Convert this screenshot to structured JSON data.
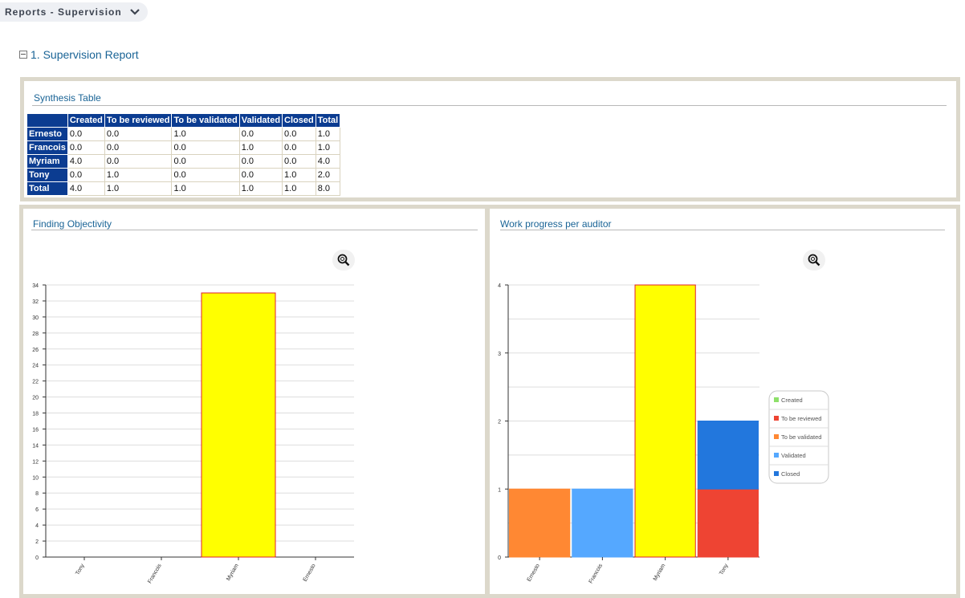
{
  "header": {
    "title": "Reports - Supervision"
  },
  "section": {
    "title": "1. Supervision Report"
  },
  "synthesis": {
    "title": "Synthesis Table",
    "columns": [
      "Created",
      "To be reviewed",
      "To be validated",
      "Validated",
      "Closed",
      "Total"
    ],
    "rows": [
      {
        "label": "Ernesto",
        "values": [
          "0.0",
          "0.0",
          "1.0",
          "0.0",
          "0.0",
          "1.0"
        ]
      },
      {
        "label": "Francois",
        "values": [
          "0.0",
          "0.0",
          "0.0",
          "1.0",
          "0.0",
          "1.0"
        ]
      },
      {
        "label": "Myriam",
        "values": [
          "4.0",
          "0.0",
          "0.0",
          "0.0",
          "0.0",
          "4.0"
        ]
      },
      {
        "label": "Tony",
        "values": [
          "0.0",
          "1.0",
          "0.0",
          "0.0",
          "1.0",
          "2.0"
        ]
      },
      {
        "label": "Total",
        "values": [
          "4.0",
          "1.0",
          "1.0",
          "1.0",
          "1.0",
          "8.0"
        ]
      }
    ]
  },
  "chart_data": [
    {
      "type": "bar",
      "title": "Finding Objectivity",
      "categories": [
        "Tony",
        "Francois",
        "Myriam",
        "Ernesto"
      ],
      "values": [
        0,
        0,
        33,
        0
      ],
      "ylim": [
        0,
        34
      ],
      "yticks": [
        0,
        2,
        4,
        6,
        8,
        10,
        12,
        14,
        16,
        18,
        20,
        22,
        24,
        26,
        28,
        30,
        32,
        34
      ],
      "grid": true,
      "bar_color": "#ffff00",
      "bar_stroke": "#e0202a"
    },
    {
      "type": "bar",
      "stacked": true,
      "title": "Work progress per auditor",
      "categories": [
        "Ernesto",
        "Francois",
        "Myriam",
        "Tony"
      ],
      "series": [
        {
          "name": "Created",
          "color": "#ffff00",
          "stroke": "#e0202a",
          "legend_color": "#8ee06a",
          "values": [
            0,
            0,
            4,
            0
          ]
        },
        {
          "name": "To be reviewed",
          "color": "#ee4433",
          "legend_color": "#ee4433",
          "values": [
            0,
            0,
            0,
            1
          ]
        },
        {
          "name": "To be validated",
          "color": "#ff8833",
          "legend_color": "#ff8833",
          "values": [
            1,
            0,
            0,
            0
          ]
        },
        {
          "name": "Validated",
          "color": "#55a8ff",
          "legend_color": "#55a8ff",
          "values": [
            0,
            1,
            0,
            0
          ]
        },
        {
          "name": "Closed",
          "color": "#2277dd",
          "legend_color": "#2277dd",
          "values": [
            0,
            0,
            0,
            1
          ]
        }
      ],
      "ylim": [
        0,
        4
      ],
      "yticks": [
        0,
        1,
        2,
        3,
        4
      ],
      "grid": true,
      "legend": "right"
    }
  ]
}
